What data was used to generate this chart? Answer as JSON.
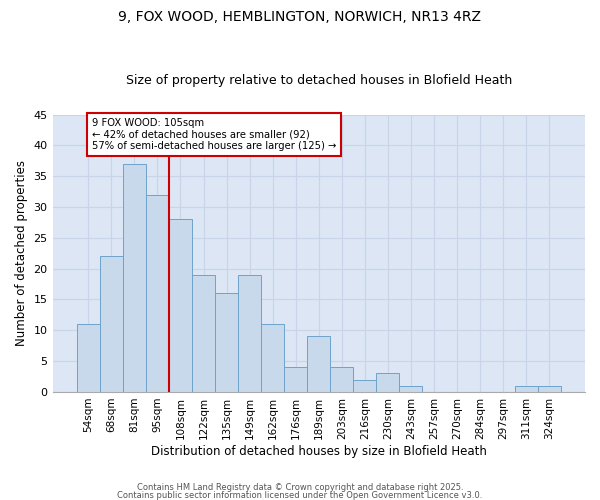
{
  "title_line1": "9, FOX WOOD, HEMBLINGTON, NORWICH, NR13 4RZ",
  "title_line2": "Size of property relative to detached houses in Blofield Heath",
  "xlabel": "Distribution of detached houses by size in Blofield Heath",
  "ylabel": "Number of detached properties",
  "categories": [
    "54sqm",
    "68sqm",
    "81sqm",
    "95sqm",
    "108sqm",
    "122sqm",
    "135sqm",
    "149sqm",
    "162sqm",
    "176sqm",
    "189sqm",
    "203sqm",
    "216sqm",
    "230sqm",
    "243sqm",
    "257sqm",
    "270sqm",
    "284sqm",
    "297sqm",
    "311sqm",
    "324sqm"
  ],
  "values": [
    11,
    22,
    37,
    32,
    28,
    19,
    16,
    19,
    11,
    4,
    9,
    4,
    2,
    3,
    1,
    0,
    0,
    0,
    0,
    1,
    1
  ],
  "bar_color": "#c9d9ec",
  "bar_edge_color": "#6ea3cc",
  "vline_color": "#cc0000",
  "vline_x": 3.5,
  "annotation_text": "9 FOX WOOD: 105sqm\n← 42% of detached houses are smaller (92)\n57% of semi-detached houses are larger (125) →",
  "annotation_box_color": "white",
  "annotation_box_edge_color": "#cc0000",
  "ylim": [
    0,
    45
  ],
  "yticks": [
    0,
    5,
    10,
    15,
    20,
    25,
    30,
    35,
    40,
    45
  ],
  "grid_color": "#c8d4e8",
  "background_color": "#dce6f5",
  "footer_line1": "Contains HM Land Registry data © Crown copyright and database right 2025.",
  "footer_line2": "Contains public sector information licensed under the Open Government Licence v3.0.",
  "title_fontsize": 10,
  "subtitle_fontsize": 9
}
